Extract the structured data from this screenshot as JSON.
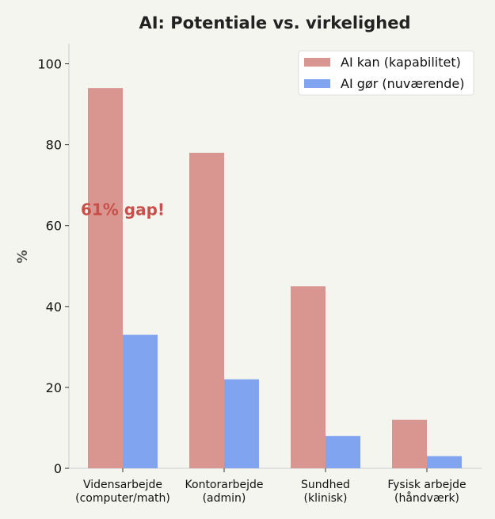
{
  "chart_data": {
    "type": "bar",
    "title": "AI: Potentiale vs. virkelighed",
    "xlabel": "",
    "ylabel": "%",
    "ylim": [
      0,
      105
    ],
    "yticks": [
      0,
      20,
      40,
      60,
      80,
      100
    ],
    "categories": [
      [
        "Vidensarbejde",
        "(computer/math)"
      ],
      [
        "Kontorarbejde",
        "(admin)"
      ],
      [
        "Sundhed",
        "(klinisk)"
      ],
      [
        "Fysisk arbejde",
        "(håndværk)"
      ]
    ],
    "series": [
      {
        "name": "AI kan (kapabilitet)",
        "color": "#d9958f",
        "values": [
          94,
          78,
          45,
          12
        ]
      },
      {
        "name": "AI gør (nuværende)",
        "color": "#80a4ef",
        "values": [
          33,
          22,
          8,
          3
        ]
      }
    ],
    "annotation": {
      "text": "61% gap!",
      "color": "#c9504a",
      "y": 64
    },
    "legend": "top-right",
    "grid": false
  }
}
